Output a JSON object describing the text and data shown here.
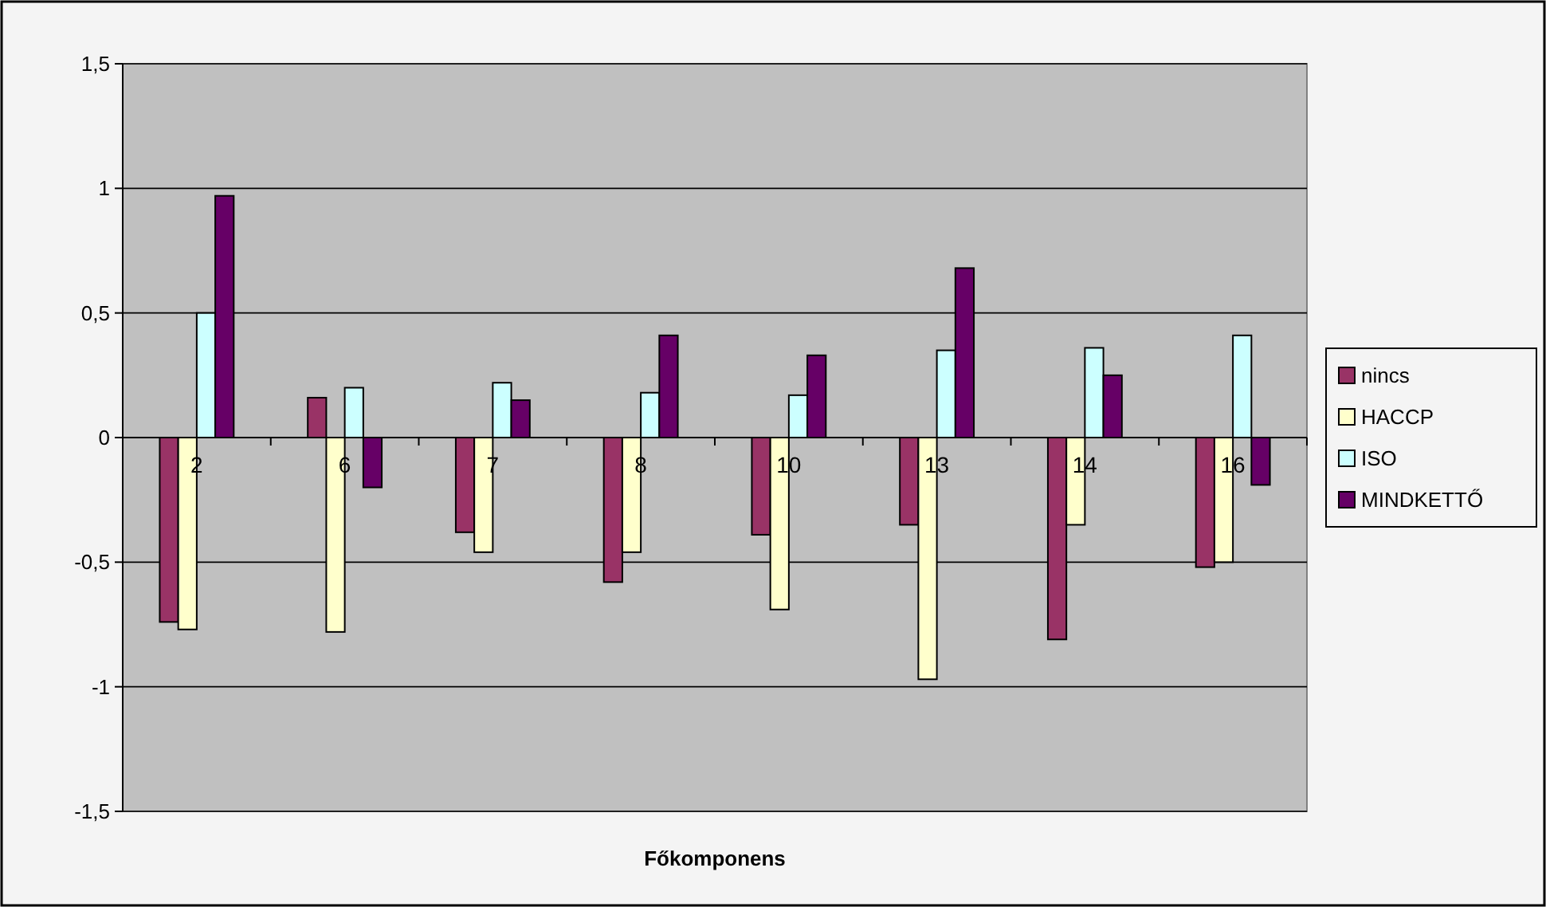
{
  "chart_data": {
    "type": "bar",
    "xlabel": "Főkomponens",
    "categories": [
      "2",
      "6",
      "7",
      "8",
      "10",
      "13",
      "14",
      "16"
    ],
    "series": [
      {
        "name": "nincs",
        "color": "#993366",
        "values": [
          -0.74,
          0.16,
          -0.38,
          -0.58,
          -0.39,
          -0.35,
          -0.81,
          -0.52
        ]
      },
      {
        "name": "HACCP",
        "color": "#ffffcc",
        "values": [
          -0.77,
          -0.78,
          -0.46,
          -0.46,
          -0.69,
          -0.97,
          -0.35,
          -0.5
        ]
      },
      {
        "name": "ISO",
        "color": "#ccffff",
        "values": [
          0.5,
          0.2,
          0.22,
          0.18,
          0.17,
          0.35,
          0.36,
          0.41
        ]
      },
      {
        "name": "MINDKETTŐ",
        "color": "#660066",
        "values": [
          0.97,
          -0.2,
          0.15,
          0.41,
          0.33,
          0.68,
          0.25,
          -0.19
        ]
      }
    ],
    "ylim": [
      -1.5,
      1.5
    ],
    "yticks": [
      {
        "value": 1.5,
        "label": "1,5"
      },
      1,
      {
        "value": 0.5,
        "label": "0,5"
      },
      0,
      {
        "value": -0.5,
        "label": "-0,5"
      },
      -1,
      {
        "value": -1.5,
        "label": "-1,5"
      }
    ],
    "grid": "y",
    "legend": "right"
  }
}
